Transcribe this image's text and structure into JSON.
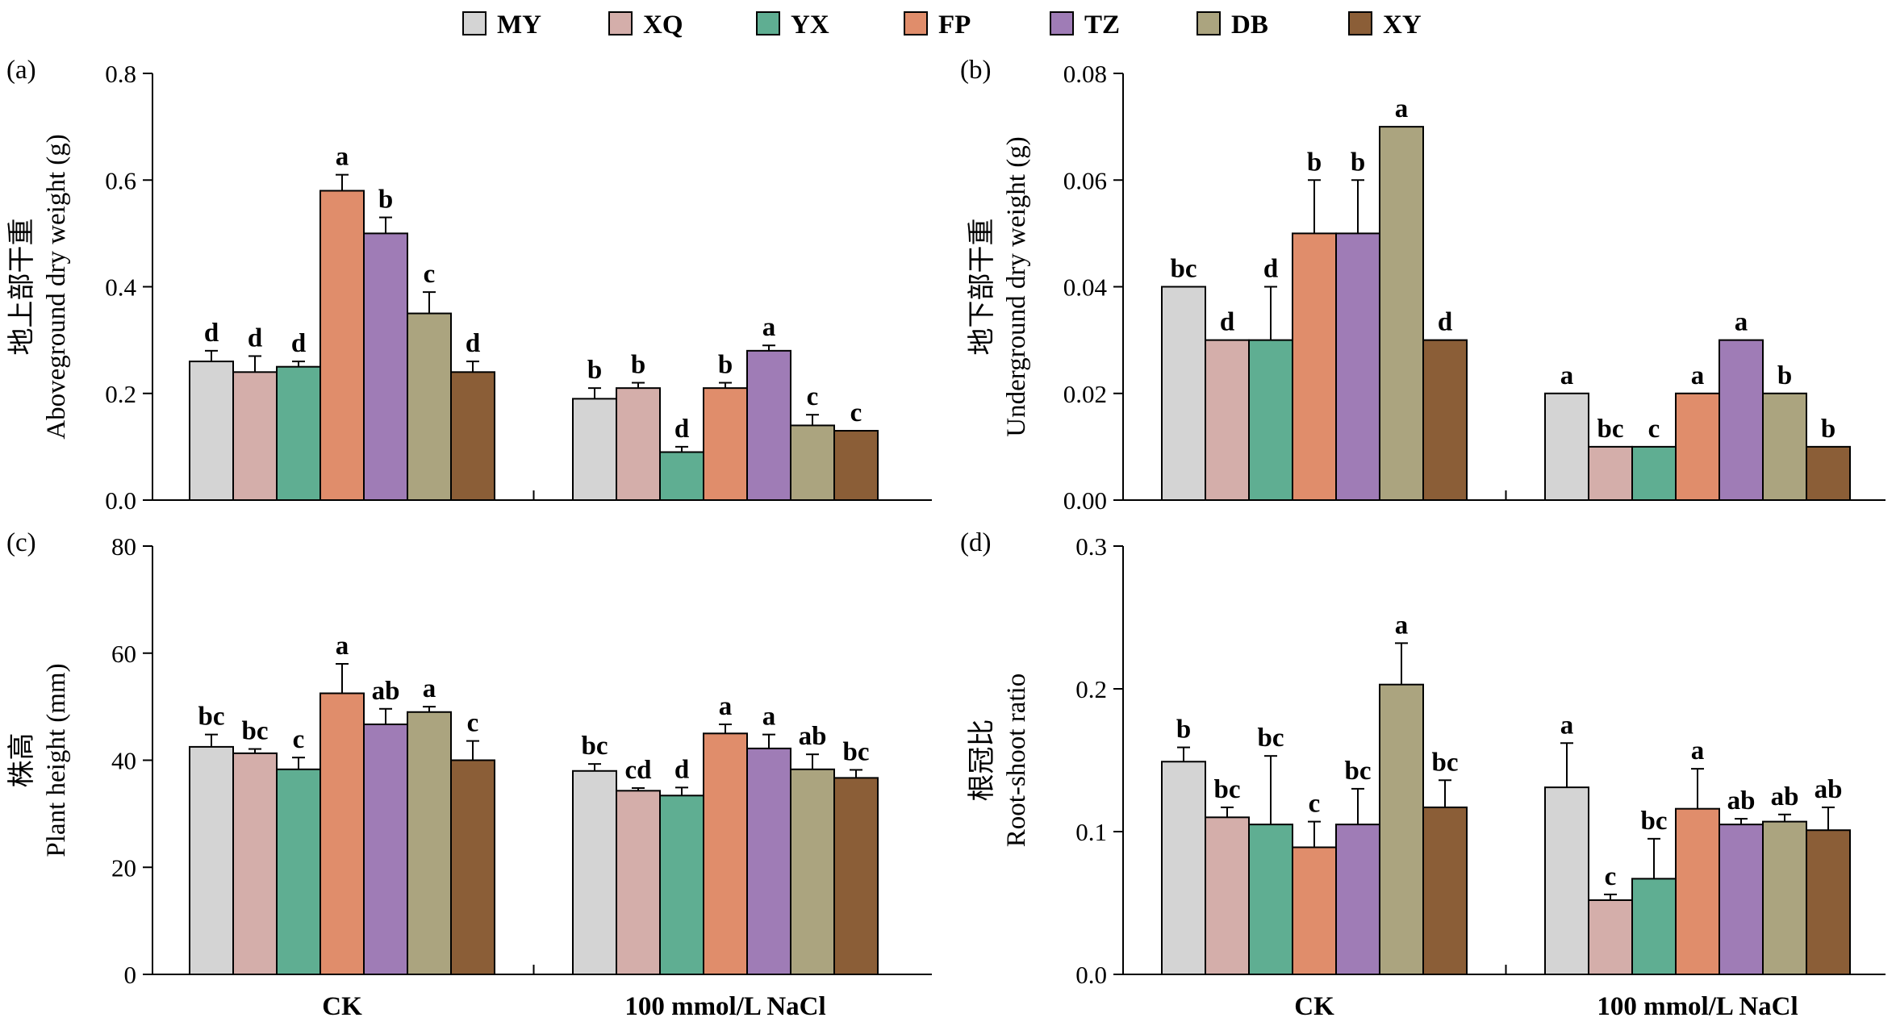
{
  "legend": [
    {
      "name": "MY",
      "color": "#d4d4d4"
    },
    {
      "name": "XQ",
      "color": "#d4aeaa"
    },
    {
      "name": "YX",
      "color": "#5fae92"
    },
    {
      "name": "FP",
      "color": "#e08d6b"
    },
    {
      "name": "TZ",
      "color": "#9f7cb6"
    },
    {
      "name": "DB",
      "color": "#aba47f"
    },
    {
      "name": "XY",
      "color": "#8b5e37"
    }
  ],
  "categories": [
    "CK",
    "100 mmol/L NaCl"
  ],
  "chart_data": [
    {
      "type": "bar",
      "panel": "(a)",
      "ylabel_cn": "地上部干重",
      "ylabel": "Aboveground dry weight (g)",
      "ylim": [
        0,
        0.8
      ],
      "yticks": [
        "0.0",
        "0.2",
        "0.4",
        "0.6",
        "0.8"
      ],
      "categories": [
        "CK",
        "100 mmol/L NaCl"
      ],
      "series": [
        {
          "name": "MY",
          "values": [
            0.26,
            0.19
          ],
          "errors": [
            0.02,
            0.02
          ],
          "letters": [
            "d",
            "b"
          ]
        },
        {
          "name": "XQ",
          "values": [
            0.24,
            0.21
          ],
          "errors": [
            0.03,
            0.01
          ],
          "letters": [
            "d",
            "b"
          ]
        },
        {
          "name": "YX",
          "values": [
            0.25,
            0.09
          ],
          "errors": [
            0.01,
            0.01
          ],
          "letters": [
            "d",
            "d"
          ]
        },
        {
          "name": "FP",
          "values": [
            0.58,
            0.21
          ],
          "errors": [
            0.03,
            0.01
          ],
          "letters": [
            "a",
            "b"
          ]
        },
        {
          "name": "TZ",
          "values": [
            0.5,
            0.28
          ],
          "errors": [
            0.03,
            0.01
          ],
          "letters": [
            "b",
            "a"
          ]
        },
        {
          "name": "DB",
          "values": [
            0.35,
            0.14
          ],
          "errors": [
            0.04,
            0.02
          ],
          "letters": [
            "c",
            "c"
          ]
        },
        {
          "name": "XY",
          "values": [
            0.24,
            0.13
          ],
          "errors": [
            0.02,
            0.0
          ],
          "letters": [
            "d",
            "c"
          ]
        }
      ]
    },
    {
      "type": "bar",
      "panel": "(b)",
      "ylabel_cn": "地下部干重",
      "ylabel": "Underground dry weight (g)",
      "ylim": [
        0,
        0.08
      ],
      "yticks": [
        "0.00",
        "0.02",
        "0.04",
        "0.06",
        "0.08"
      ],
      "categories": [
        "CK",
        "100 mmol/L NaCl"
      ],
      "series": [
        {
          "name": "MY",
          "values": [
            0.04,
            0.02
          ],
          "errors": [
            0.0,
            0.0
          ],
          "letters": [
            "bc",
            "a"
          ]
        },
        {
          "name": "XQ",
          "values": [
            0.03,
            0.01
          ],
          "errors": [
            0.0,
            0.0
          ],
          "letters": [
            "d",
            "bc"
          ]
        },
        {
          "name": "YX",
          "values": [
            0.03,
            0.01
          ],
          "errors": [
            0.01,
            0.0
          ],
          "letters": [
            "d",
            "c"
          ]
        },
        {
          "name": "FP",
          "values": [
            0.05,
            0.02
          ],
          "errors": [
            0.01,
            0.0
          ],
          "letters": [
            "b",
            "a"
          ]
        },
        {
          "name": "TZ",
          "values": [
            0.05,
            0.03
          ],
          "errors": [
            0.01,
            0.0
          ],
          "letters": [
            "b",
            "a"
          ]
        },
        {
          "name": "DB",
          "values": [
            0.07,
            0.02
          ],
          "errors": [
            0.0,
            0.0
          ],
          "letters": [
            "a",
            "b"
          ]
        },
        {
          "name": "XY",
          "values": [
            0.03,
            0.01
          ],
          "errors": [
            0.0,
            0.0
          ],
          "letters": [
            "d",
            "b"
          ]
        }
      ]
    },
    {
      "type": "bar",
      "panel": "(c)",
      "ylabel_cn": "株高",
      "ylabel": "Plant height (mm)",
      "ylim": [
        0,
        80
      ],
      "yticks": [
        "0",
        "20",
        "40",
        "60",
        "80"
      ],
      "categories": [
        "CK",
        "100 mmol/L NaCl"
      ],
      "series": [
        {
          "name": "MY",
          "values": [
            42.5,
            38.0
          ],
          "errors": [
            2.3,
            1.3
          ],
          "letters": [
            "bc",
            "bc"
          ]
        },
        {
          "name": "XQ",
          "values": [
            41.3,
            34.3
          ],
          "errors": [
            0.8,
            0.5
          ],
          "letters": [
            "bc",
            "cd"
          ]
        },
        {
          "name": "YX",
          "values": [
            38.3,
            33.4
          ],
          "errors": [
            2.2,
            1.5
          ],
          "letters": [
            "c",
            "d"
          ]
        },
        {
          "name": "FP",
          "values": [
            52.5,
            45.0
          ],
          "errors": [
            5.5,
            1.7
          ],
          "letters": [
            "a",
            "a"
          ]
        },
        {
          "name": "TZ",
          "values": [
            46.7,
            42.2
          ],
          "errors": [
            2.9,
            2.6
          ],
          "letters": [
            "ab",
            "a"
          ]
        },
        {
          "name": "DB",
          "values": [
            49.0,
            38.3
          ],
          "errors": [
            1.0,
            2.8
          ],
          "letters": [
            "a",
            "ab"
          ]
        },
        {
          "name": "XY",
          "values": [
            40.0,
            36.7
          ],
          "errors": [
            3.6,
            1.5
          ],
          "letters": [
            "c",
            "bc"
          ]
        }
      ]
    },
    {
      "type": "bar",
      "panel": "(d)",
      "ylabel_cn": "根冠比",
      "ylabel": "Root-shoot ratio",
      "ylim": [
        0,
        0.3
      ],
      "yticks": [
        "0.0",
        "0.1",
        "0.2",
        "0.3"
      ],
      "categories": [
        "CK",
        "100 mmol/L NaCl"
      ],
      "series": [
        {
          "name": "MY",
          "values": [
            0.149,
            0.131
          ],
          "errors": [
            0.01,
            0.031
          ],
          "letters": [
            "b",
            "a"
          ]
        },
        {
          "name": "XQ",
          "values": [
            0.11,
            0.052
          ],
          "errors": [
            0.007,
            0.004
          ],
          "letters": [
            "bc",
            "c"
          ]
        },
        {
          "name": "YX",
          "values": [
            0.105,
            0.067
          ],
          "errors": [
            0.048,
            0.028
          ],
          "letters": [
            "bc",
            "bc"
          ]
        },
        {
          "name": "FP",
          "values": [
            0.089,
            0.116
          ],
          "errors": [
            0.018,
            0.028
          ],
          "letters": [
            "c",
            "a"
          ]
        },
        {
          "name": "TZ",
          "values": [
            0.105,
            0.105
          ],
          "errors": [
            0.025,
            0.004
          ],
          "letters": [
            "bc",
            "ab"
          ]
        },
        {
          "name": "DB",
          "values": [
            0.203,
            0.107
          ],
          "errors": [
            0.029,
            0.005
          ],
          "letters": [
            "a",
            "ab"
          ]
        },
        {
          "name": "XY",
          "values": [
            0.117,
            0.101
          ],
          "errors": [
            0.019,
            0.016
          ],
          "letters": [
            "bc",
            "ab"
          ]
        }
      ]
    }
  ]
}
